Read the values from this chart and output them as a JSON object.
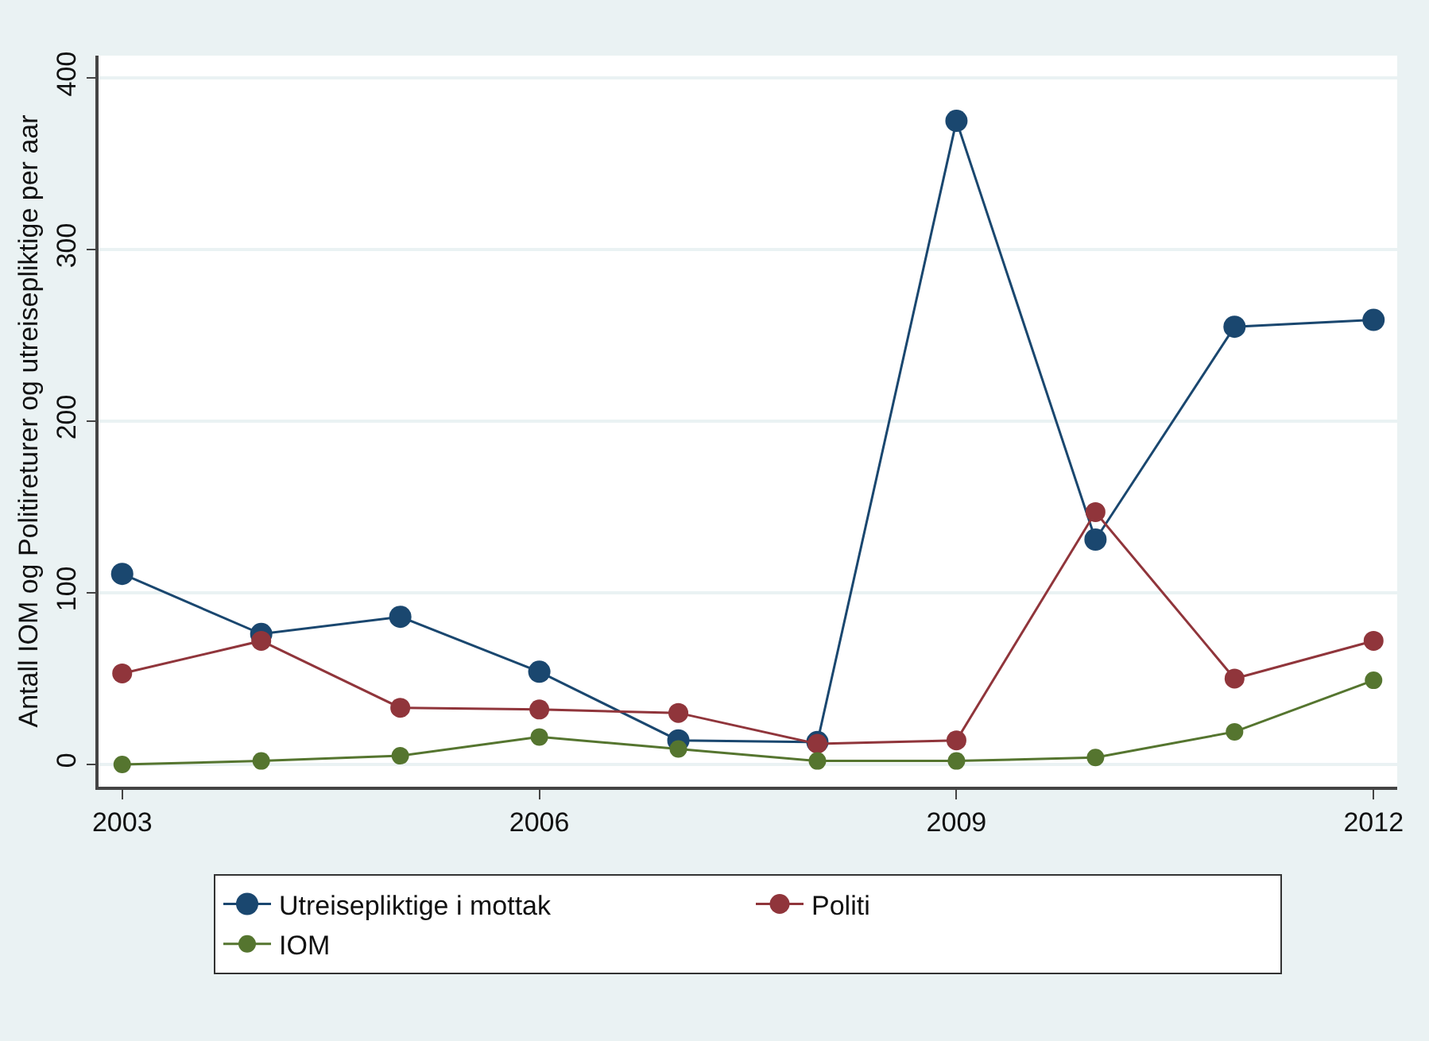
{
  "chart_data": {
    "type": "line",
    "ylabel": "Antall IOM og Politireturer og utreisepliktige per aar",
    "x": [
      2003,
      2004,
      2005,
      2006,
      2007,
      2008,
      2009,
      2010,
      2011,
      2012
    ],
    "series": [
      {
        "name": "Utreisepliktige i mottak",
        "color": "#1a476f",
        "values": [
          111,
          76,
          86,
          54,
          14,
          13,
          375,
          131,
          255,
          259
        ]
      },
      {
        "name": "Politi",
        "color": "#90353b",
        "values": [
          53,
          72,
          33,
          32,
          30,
          12,
          14,
          147,
          50,
          72
        ]
      },
      {
        "name": "IOM",
        "color": "#55752f",
        "values": [
          0,
          2,
          5,
          16,
          9,
          2,
          2,
          4,
          19,
          49
        ]
      }
    ],
    "xlim": [
      2002.83,
      2012.17
    ],
    "xticks": [
      2003,
      2006,
      2009,
      2012
    ],
    "ylim": [
      -13,
      413
    ],
    "yticks": [
      0,
      100,
      200,
      300,
      400
    ],
    "grid": "y",
    "legend": "bottom",
    "marker": "circle",
    "line_style": "solid"
  }
}
